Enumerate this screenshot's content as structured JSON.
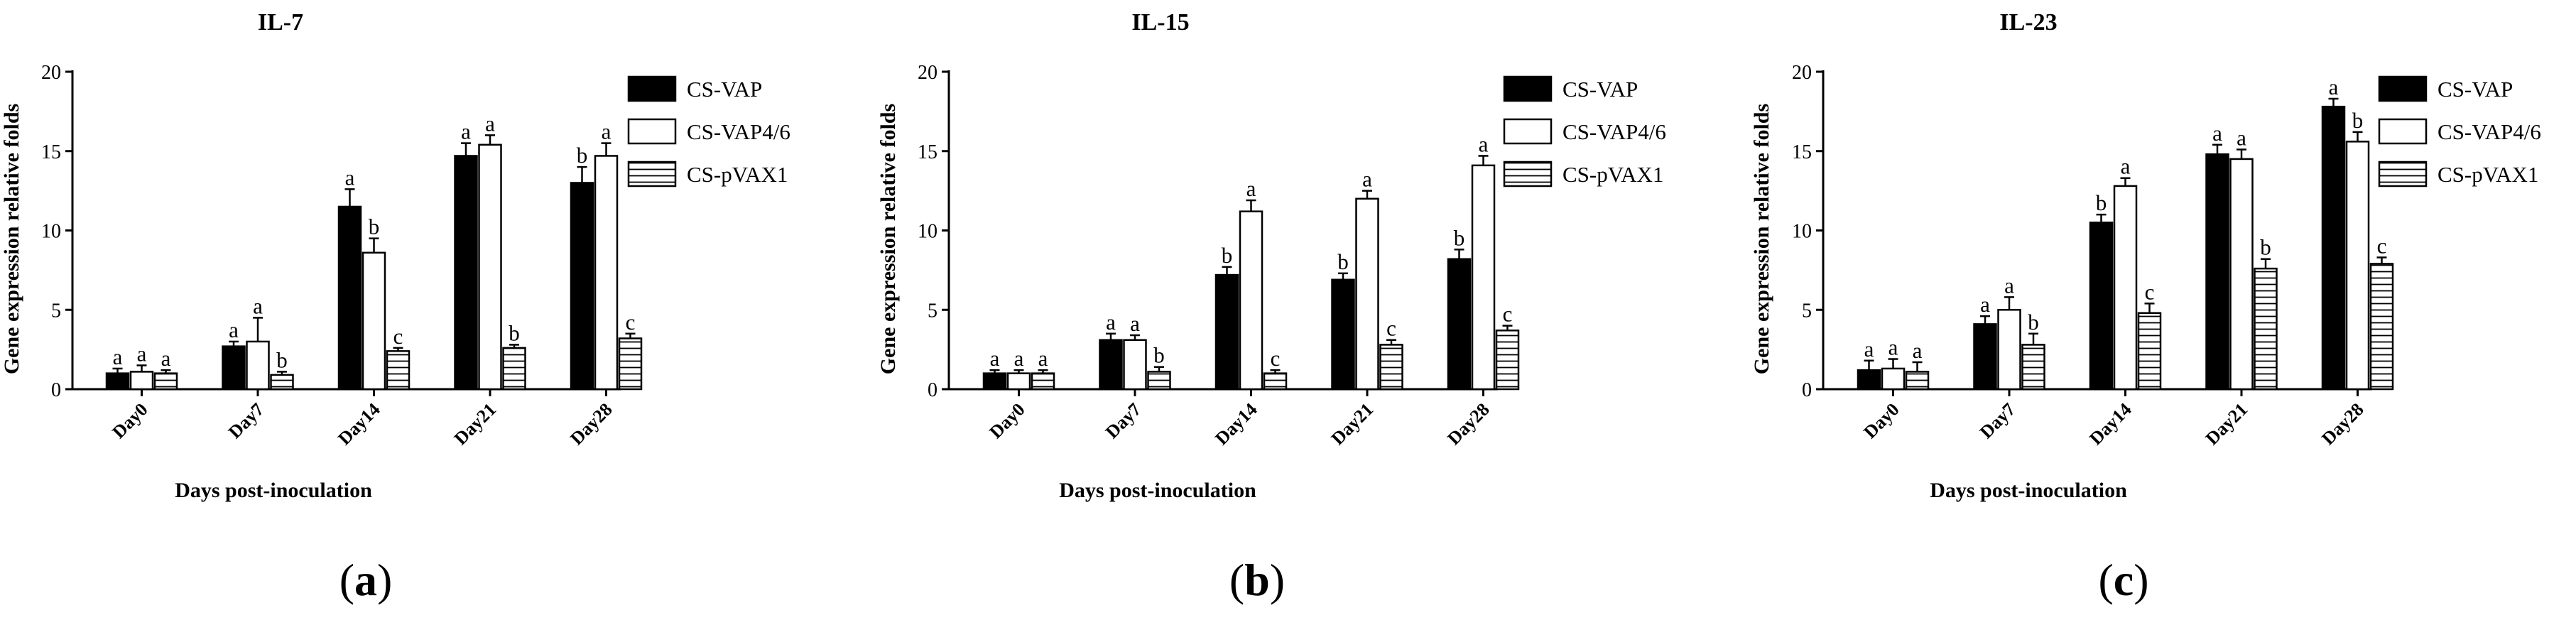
{
  "chart_data": [
    {
      "type": "bar",
      "panel_label": "a",
      "title": "IL-7",
      "xlabel": "Days post-inoculation",
      "ylabel": "Gene expression relative folds",
      "ylim": [
        0,
        20
      ],
      "yticks": [
        0,
        5,
        10,
        15,
        20
      ],
      "categories": [
        "Day0",
        "Day7",
        "Day14",
        "Day21",
        "Day28"
      ],
      "series": [
        {
          "name": "CS-VAP",
          "fill": "solid",
          "values": [
            1.0,
            2.7,
            11.5,
            14.7,
            13.0
          ],
          "errors": [
            0.3,
            0.3,
            1.1,
            0.8,
            1.0
          ],
          "letters": [
            "a",
            "a",
            "a",
            "a",
            "b"
          ]
        },
        {
          "name": "CS-VAP4/6",
          "fill": "open",
          "values": [
            1.1,
            3.0,
            8.6,
            15.4,
            14.7
          ],
          "errors": [
            0.4,
            1.5,
            0.9,
            0.6,
            0.8
          ],
          "letters": [
            "a",
            "a",
            "b",
            "a",
            "a"
          ]
        },
        {
          "name": "CS-pVAX1",
          "fill": "striped",
          "values": [
            1.0,
            0.9,
            2.4,
            2.6,
            3.2
          ],
          "errors": [
            0.2,
            0.2,
            0.2,
            0.2,
            0.3
          ],
          "letters": [
            "a",
            "b",
            "c",
            "b",
            "c"
          ]
        }
      ],
      "legend_position": "right"
    },
    {
      "type": "bar",
      "panel_label": "b",
      "title": "IL-15",
      "xlabel": "Days post-inoculation",
      "ylabel": "Gene expression relative folds",
      "ylim": [
        0,
        20
      ],
      "yticks": [
        0,
        5,
        10,
        15,
        20
      ],
      "categories": [
        "Day0",
        "Day7",
        "Day14",
        "Day21",
        "Day28"
      ],
      "series": [
        {
          "name": "CS-VAP",
          "fill": "solid",
          "values": [
            1.0,
            3.1,
            7.2,
            6.9,
            8.2
          ],
          "errors": [
            0.2,
            0.4,
            0.5,
            0.4,
            0.6
          ],
          "letters": [
            "a",
            "a",
            "b",
            "b",
            "b"
          ]
        },
        {
          "name": "CS-VAP4/6",
          "fill": "open",
          "values": [
            1.0,
            3.1,
            11.2,
            12.0,
            14.1
          ],
          "errors": [
            0.2,
            0.3,
            0.7,
            0.5,
            0.6
          ],
          "letters": [
            "a",
            "a",
            "a",
            "a",
            "a"
          ]
        },
        {
          "name": "CS-pVAX1",
          "fill": "striped",
          "values": [
            1.0,
            1.1,
            1.0,
            2.8,
            3.7
          ],
          "errors": [
            0.2,
            0.3,
            0.2,
            0.3,
            0.3
          ],
          "letters": [
            "a",
            "b",
            "c",
            "c",
            "c"
          ]
        }
      ],
      "legend_position": "right"
    },
    {
      "type": "bar",
      "panel_label": "c",
      "title": "IL-23",
      "xlabel": "Days post-inoculation",
      "ylabel": "Gene expression relative folds",
      "ylim": [
        0,
        20
      ],
      "yticks": [
        0,
        5,
        10,
        15,
        20
      ],
      "categories": [
        "Day0",
        "Day7",
        "Day14",
        "Day21",
        "Day28"
      ],
      "series": [
        {
          "name": "CS-VAP",
          "fill": "solid",
          "values": [
            1.2,
            4.1,
            10.5,
            14.8,
            17.8
          ],
          "errors": [
            0.6,
            0.5,
            0.5,
            0.6,
            0.5
          ],
          "letters": [
            "a",
            "a",
            "b",
            "a",
            "a"
          ]
        },
        {
          "name": "CS-VAP4/6",
          "fill": "open",
          "values": [
            1.3,
            5.0,
            12.8,
            14.5,
            15.6
          ],
          "errors": [
            0.6,
            0.8,
            0.5,
            0.6,
            0.6
          ],
          "letters": [
            "a",
            "a",
            "a",
            "a",
            "b"
          ]
        },
        {
          "name": "CS-pVAX1",
          "fill": "striped",
          "values": [
            1.1,
            2.8,
            4.8,
            7.6,
            7.9
          ],
          "errors": [
            0.6,
            0.7,
            0.6,
            0.6,
            0.4
          ],
          "letters": [
            "a",
            "b",
            "c",
            "b",
            "c"
          ]
        }
      ],
      "legend_position": "right"
    }
  ]
}
